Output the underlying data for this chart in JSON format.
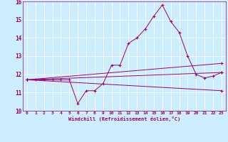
{
  "xlabel": "Windchill (Refroidissement éolien,°C)",
  "ylabel": "",
  "bg_color": "#cceeff",
  "grid_color": "#ffffff",
  "line_color": "#990077",
  "xlim": [
    -0.5,
    23.5
  ],
  "ylim": [
    10,
    16
  ],
  "xticks": [
    0,
    1,
    2,
    3,
    4,
    5,
    6,
    7,
    8,
    9,
    10,
    11,
    12,
    13,
    14,
    15,
    16,
    17,
    18,
    19,
    20,
    21,
    22,
    23
  ],
  "yticks": [
    10,
    11,
    12,
    13,
    14,
    15,
    16
  ],
  "line1_x": [
    0,
    1,
    2,
    3,
    4,
    5,
    6,
    7,
    8,
    9,
    10,
    11,
    12,
    13,
    14,
    15,
    16,
    17,
    18,
    19,
    20,
    21,
    22,
    23
  ],
  "line1_y": [
    11.7,
    11.7,
    11.7,
    11.7,
    11.7,
    11.7,
    10.4,
    11.1,
    11.1,
    11.5,
    12.5,
    12.5,
    13.7,
    14.0,
    14.5,
    15.2,
    15.8,
    14.9,
    14.3,
    13.0,
    12.0,
    11.8,
    11.9,
    12.1
  ],
  "line2_x": [
    0,
    23
  ],
  "line2_y": [
    11.7,
    12.1
  ],
  "line3_x": [
    0,
    23
  ],
  "line3_y": [
    11.7,
    11.1
  ],
  "line4_x": [
    0,
    23
  ],
  "line4_y": [
    11.7,
    12.6
  ]
}
